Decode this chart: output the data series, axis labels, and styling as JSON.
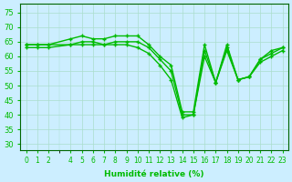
{
  "title": "Humidité relative (%)",
  "xlabel": "Humidité relative (%)",
  "background_color": "#cceeff",
  "grid_color": "#aaddcc",
  "line_color": "#00bb00",
  "marker_color": "#00bb00",
  "x_ticks": [
    0,
    1,
    2,
    4,
    5,
    6,
    7,
    8,
    9,
    10,
    11,
    12,
    13,
    14,
    15,
    16,
    17,
    18,
    19,
    20,
    21,
    22,
    23
  ],
  "ylim": [
    28,
    78
  ],
  "yticks": [
    30,
    35,
    40,
    45,
    50,
    55,
    60,
    65,
    70,
    75
  ],
  "series_max": [
    64,
    64,
    64,
    66,
    67,
    66,
    66,
    67,
    67,
    67,
    64,
    60,
    57,
    41,
    41,
    64,
    51,
    64,
    52,
    53,
    59,
    62,
    63
  ],
  "series_mean": [
    64,
    64,
    64,
    64,
    65,
    65,
    64,
    65,
    65,
    65,
    63,
    59,
    55,
    40,
    40,
    62,
    51,
    63,
    52,
    53,
    59,
    61,
    63
  ],
  "series_min": [
    63,
    63,
    63,
    64,
    64,
    64,
    64,
    64,
    64,
    63,
    61,
    57,
    52,
    39,
    40,
    60,
    51,
    62,
    52,
    53,
    58,
    60,
    62
  ],
  "x_values": [
    0,
    1,
    2,
    4,
    5,
    6,
    7,
    8,
    9,
    10,
    11,
    12,
    13,
    14,
    15,
    16,
    17,
    18,
    19,
    20,
    21,
    22,
    23
  ]
}
